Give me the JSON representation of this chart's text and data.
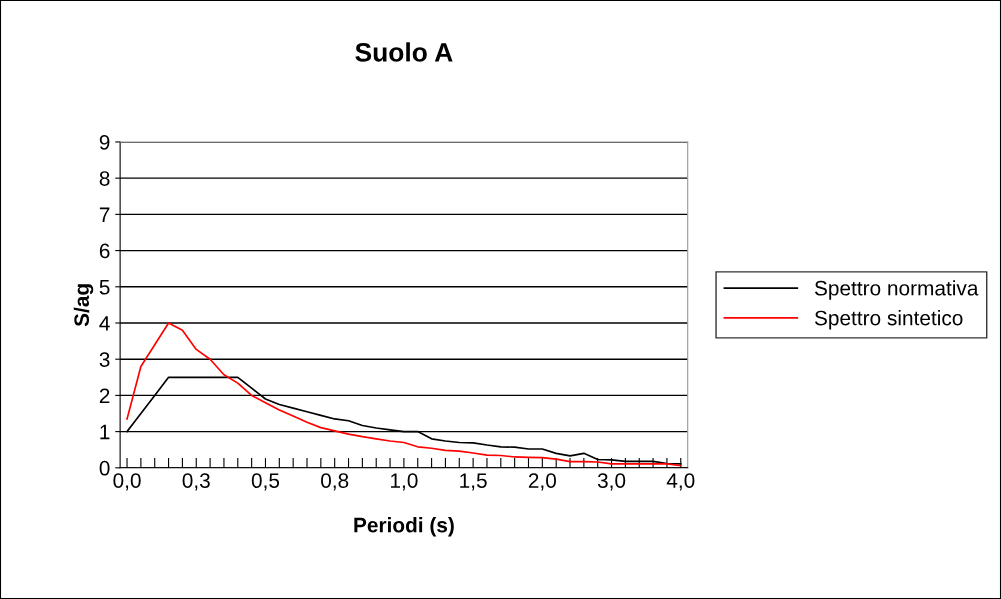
{
  "chart_data": {
    "type": "line",
    "title": "Suolo A",
    "xlabel": "Periodi (s)",
    "ylabel": "S/ag",
    "categories": [
      "0,0",
      null,
      null,
      null,
      null,
      "0,3",
      null,
      null,
      null,
      null,
      "0,5",
      null,
      null,
      null,
      null,
      "0,8",
      null,
      null,
      null,
      null,
      "1,0",
      null,
      null,
      null,
      null,
      "1,5",
      null,
      null,
      null,
      null,
      "2,0",
      null,
      null,
      null,
      null,
      "3,0",
      null,
      null,
      null,
      null,
      "4,0"
    ],
    "series": [
      {
        "name": "Spettro normativa",
        "color": "#000000",
        "values": [
          1.0,
          1.5,
          2.0,
          2.5,
          2.5,
          2.5,
          2.5,
          2.5,
          2.5,
          2.2,
          1.9,
          1.75,
          1.65,
          1.55,
          1.45,
          1.35,
          1.3,
          1.17,
          1.1,
          1.05,
          1.0,
          1.0,
          0.8,
          0.74,
          0.7,
          0.69,
          0.63,
          0.58,
          0.57,
          0.52,
          0.52,
          0.4,
          0.33,
          0.4,
          0.23,
          0.22,
          0.18,
          0.18,
          0.18,
          0.12,
          0.11
        ]
      },
      {
        "name": "Spettro sintetico",
        "color": "#ff0000",
        "values": [
          1.35,
          2.8,
          3.4,
          4.0,
          3.8,
          3.27,
          3.0,
          2.57,
          2.34,
          2.0,
          1.8,
          1.6,
          1.43,
          1.26,
          1.11,
          1.02,
          0.93,
          0.86,
          0.8,
          0.74,
          0.7,
          0.58,
          0.54,
          0.48,
          0.46,
          0.41,
          0.35,
          0.34,
          0.3,
          0.29,
          0.28,
          0.24,
          0.17,
          0.17,
          0.16,
          0.11,
          0.11,
          0.11,
          0.11,
          0.11,
          0.06
        ]
      }
    ],
    "ylim": [
      0,
      9
    ],
    "yticks": [
      0,
      1,
      2,
      3,
      4,
      5,
      6,
      7,
      8,
      9
    ],
    "grid": "y",
    "legend": "right",
    "marker": "none",
    "line_style": "solid"
  }
}
